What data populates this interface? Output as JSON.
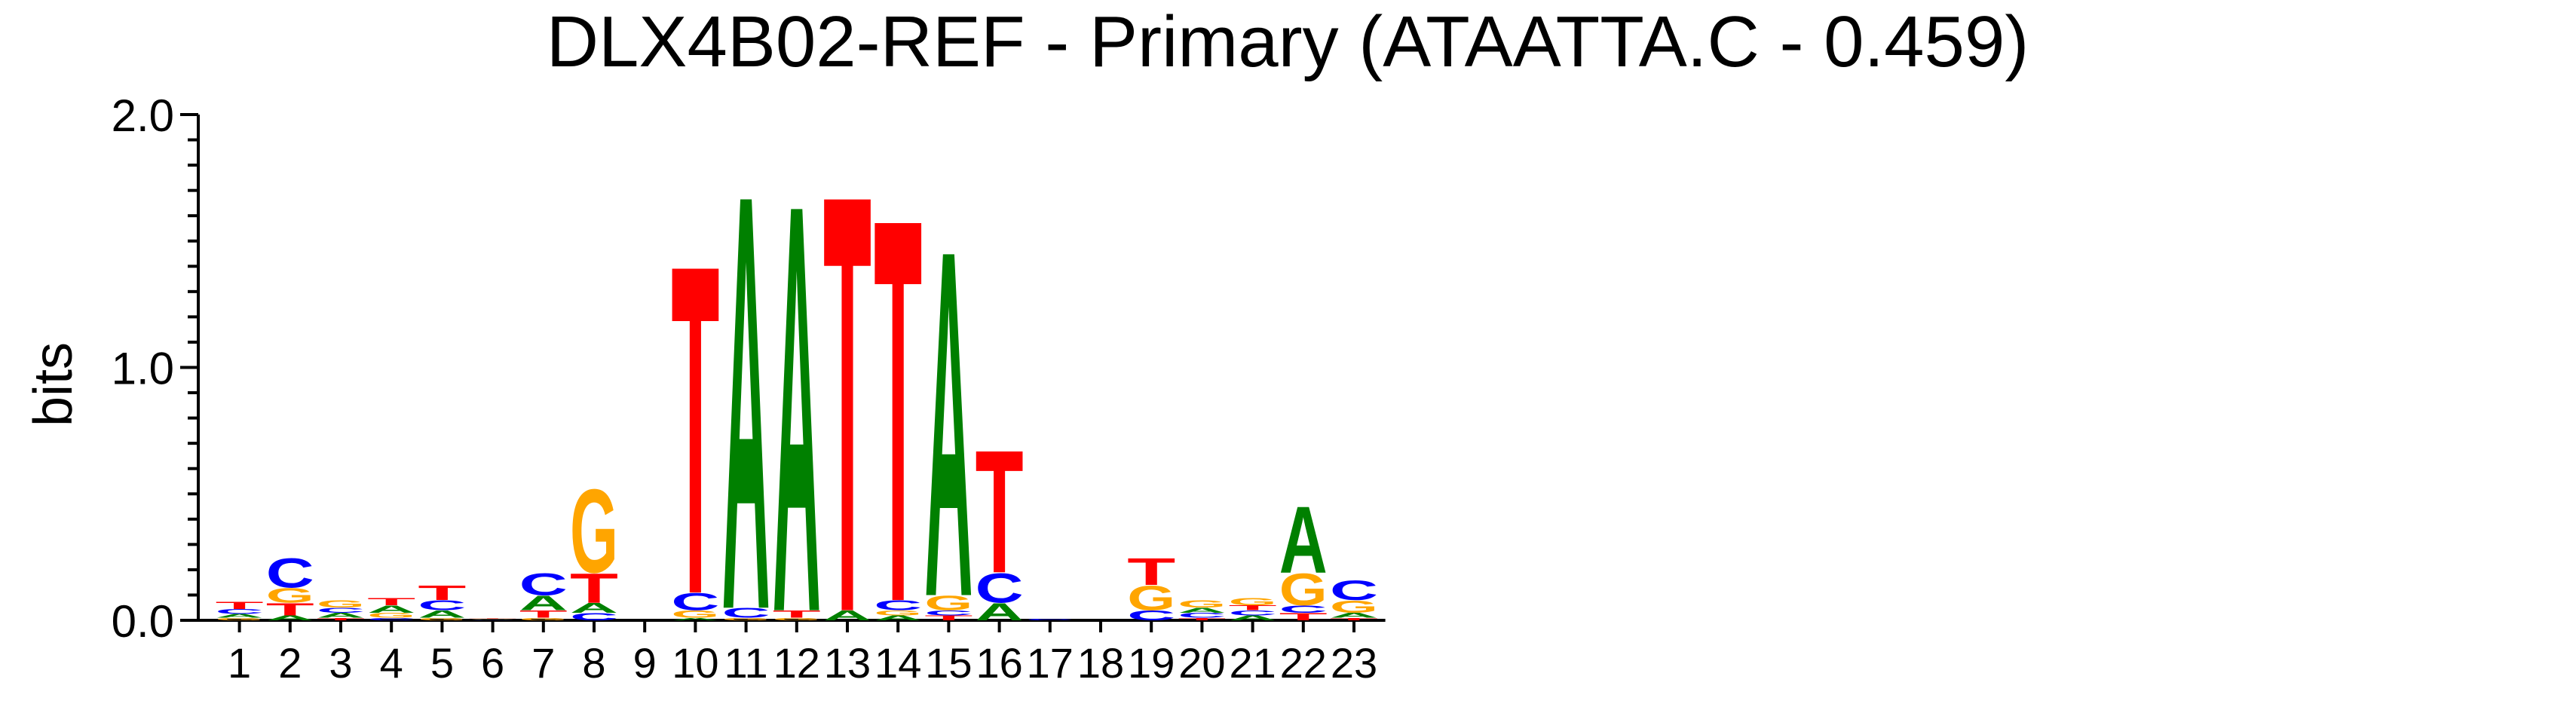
{
  "chart_data": {
    "type": "sequence-logo",
    "title": "DLX4B02-REF - Primary (ATAATTA.C - 0.459)",
    "ylabel": "bits",
    "ylim": [
      0,
      2.0
    ],
    "yticks": [
      {
        "value": 0.0,
        "label": "0.0"
      },
      {
        "value": 1.0,
        "label": "1.0"
      },
      {
        "value": 2.0,
        "label": "2.0"
      }
    ],
    "colors": {
      "A": "#008000",
      "C": "#0000ff",
      "G": "#ffa500",
      "T": "#ff0000"
    },
    "positions": [
      {
        "label": "1",
        "stack": [
          [
            "G",
            0.01
          ],
          [
            "A",
            0.015
          ],
          [
            "C",
            0.02
          ],
          [
            "T",
            0.03
          ]
        ]
      },
      {
        "label": "2",
        "stack": [
          [
            "A",
            0.02
          ],
          [
            "T",
            0.05
          ],
          [
            "G",
            0.06
          ],
          [
            "C",
            0.12
          ]
        ]
      },
      {
        "label": "3",
        "stack": [
          [
            "T",
            0.01
          ],
          [
            "A",
            0.02
          ],
          [
            "C",
            0.02
          ],
          [
            "G",
            0.03
          ]
        ]
      },
      {
        "label": "4",
        "stack": [
          [
            "C",
            0.01
          ],
          [
            "G",
            0.02
          ],
          [
            "A",
            0.03
          ],
          [
            "T",
            0.03
          ]
        ]
      },
      {
        "label": "5",
        "stack": [
          [
            "G",
            0.01
          ],
          [
            "A",
            0.03
          ],
          [
            "C",
            0.04
          ],
          [
            "T",
            0.06
          ]
        ]
      },
      {
        "label": "6",
        "stack": [
          [
            "A",
            0.002
          ],
          [
            "C",
            0.002
          ],
          [
            "G",
            0.002
          ],
          [
            "T",
            0.002
          ]
        ]
      },
      {
        "label": "7",
        "stack": [
          [
            "G",
            0.01
          ],
          [
            "T",
            0.03
          ],
          [
            "A",
            0.06
          ],
          [
            "C",
            0.09
          ]
        ]
      },
      {
        "label": "8",
        "stack": [
          [
            "C",
            0.03
          ],
          [
            "A",
            0.04
          ],
          [
            "T",
            0.12
          ],
          [
            "G",
            0.34
          ]
        ]
      },
      {
        "label": "9",
        "stack": []
      },
      {
        "label": "10",
        "stack": [
          [
            "A",
            0.01
          ],
          [
            "G",
            0.03
          ],
          [
            "C",
            0.07
          ],
          [
            "T",
            1.34
          ]
        ]
      },
      {
        "label": "11",
        "stack": [
          [
            "G",
            0.01
          ],
          [
            "C",
            0.04
          ],
          [
            "A",
            1.69
          ]
        ]
      },
      {
        "label": "12",
        "stack": [
          [
            "G",
            0.01
          ],
          [
            "T",
            0.03
          ],
          [
            "A",
            1.66
          ]
        ]
      },
      {
        "label": "13",
        "stack": [
          [
            "A",
            0.04
          ],
          [
            "T",
            1.7
          ]
        ]
      },
      {
        "label": "14",
        "stack": [
          [
            "A",
            0.02
          ],
          [
            "G",
            0.02
          ],
          [
            "C",
            0.04
          ],
          [
            "T",
            1.56
          ]
        ]
      },
      {
        "label": "15",
        "stack": [
          [
            "T",
            0.02
          ],
          [
            "C",
            0.02
          ],
          [
            "G",
            0.06
          ],
          [
            "A",
            1.41
          ]
        ]
      },
      {
        "label": "16",
        "stack": [
          [
            "A",
            0.07
          ],
          [
            "C",
            0.12
          ],
          [
            "T",
            0.5
          ]
        ]
      },
      {
        "label": "17",
        "stack": [
          [
            "C",
            0.005
          ]
        ]
      },
      {
        "label": "18",
        "stack": []
      },
      {
        "label": "19",
        "stack": [
          [
            "C",
            0.04
          ],
          [
            "G",
            0.1
          ],
          [
            "T",
            0.11
          ]
        ]
      },
      {
        "label": "20",
        "stack": [
          [
            "T",
            0.01
          ],
          [
            "C",
            0.02
          ],
          [
            "A",
            0.02
          ],
          [
            "G",
            0.03
          ]
        ]
      },
      {
        "label": "21",
        "stack": [
          [
            "A",
            0.02
          ],
          [
            "C",
            0.02
          ],
          [
            "T",
            0.02
          ],
          [
            "G",
            0.03
          ]
        ]
      },
      {
        "label": "22",
        "stack": [
          [
            "T",
            0.03
          ],
          [
            "C",
            0.03
          ],
          [
            "G",
            0.13
          ],
          [
            "A",
            0.27
          ]
        ]
      },
      {
        "label": "23",
        "stack": [
          [
            "T",
            0.01
          ],
          [
            "A",
            0.02
          ],
          [
            "G",
            0.05
          ],
          [
            "C",
            0.08
          ]
        ]
      }
    ]
  }
}
